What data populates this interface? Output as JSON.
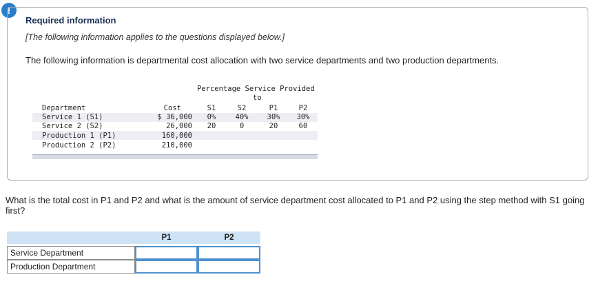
{
  "alert_symbol": "!",
  "header": {
    "title": "Required information",
    "note": "[The following information applies to the questions displayed below.]",
    "intro": "The following information is departmental cost allocation with two service departments and two production departments."
  },
  "table": {
    "group_header_line1": "Percentage Service Provided",
    "group_header_line2": "to",
    "columns": [
      "Department",
      "Cost",
      "S1",
      "S2",
      "P1",
      "P2"
    ],
    "rows": [
      {
        "department": "Service 1 (S1)",
        "cost": "$ 36,000",
        "s1": "0%",
        "s2": "40%",
        "p1": "30%",
        "p2": "30%"
      },
      {
        "department": "Service 2 (S2)",
        "cost": "26,000",
        "s1": "20",
        "s2": "0",
        "p1": "20",
        "p2": "60"
      },
      {
        "department": "Production 1 (P1)",
        "cost": "160,000",
        "s1": "",
        "s2": "",
        "p1": "",
        "p2": ""
      },
      {
        "department": "Production 2 (P2)",
        "cost": "210,000",
        "s1": "",
        "s2": "",
        "p1": "",
        "p2": ""
      }
    ]
  },
  "question": "What is the total cost in P1 and P2 and what is the amount of service department cost allocated to P1 and P2 using the step method with S1 going first?",
  "answer": {
    "columns": [
      "P1",
      "P2"
    ],
    "rows": [
      {
        "label": "Service Department",
        "p1": "",
        "p2": ""
      },
      {
        "label": "Production Department",
        "p1": "",
        "p2": ""
      }
    ]
  },
  "colors": {
    "accent": "#2a7dc9",
    "header_bg": "#cfe3f7",
    "input_border": "#4f90cf",
    "title": "#1a2f55"
  }
}
